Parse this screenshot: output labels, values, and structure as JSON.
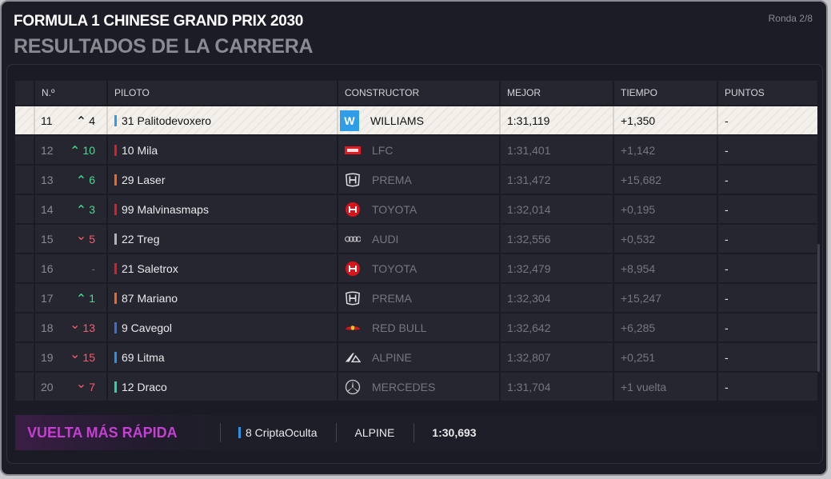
{
  "header": {
    "title": "FORMULA 1 CHINESE GRAND PRIX 2030",
    "subtitle": "RESULTADOS DE LA CARRERA",
    "round": "Ronda 2/8"
  },
  "columns": [
    "N.º",
    "PILOTO",
    "CONSTRUCTOR",
    "MEJOR",
    "TIEMPO",
    "PUNTOS"
  ],
  "rows": [
    {
      "pos": "11",
      "dir": "up",
      "change": "4",
      "driver": "31 Palitodevoxero",
      "team_color": "#2f9de8",
      "constructor": "WILLIAMS",
      "logo": "williams-logo-icon",
      "best": "1:31,119",
      "time": "+1,350",
      "points": "-",
      "highlight": true
    },
    {
      "pos": "12",
      "dir": "up",
      "change": "10",
      "driver": "10 Mila",
      "team_color": "#e01b24",
      "constructor": "LFC",
      "logo": "lfc-logo-icon",
      "best": "1:31,401",
      "time": "+1,142",
      "points": "-",
      "highlight": false
    },
    {
      "pos": "13",
      "dir": "up",
      "change": "6",
      "driver": "29 Laser",
      "team_color": "#f26522",
      "constructor": "PREMA",
      "logo": "honda-logo-icon",
      "best": "1:31,472",
      "time": "+15,682",
      "points": "-",
      "highlight": false
    },
    {
      "pos": "14",
      "dir": "up",
      "change": "3",
      "driver": "99 Malvinasmaps",
      "team_color": "#e01b24",
      "constructor": "TOYOTA",
      "logo": "haas-logo-icon",
      "best": "1:32,014",
      "time": "+0,195",
      "points": "-",
      "highlight": false
    },
    {
      "pos": "15",
      "dir": "down",
      "change": "5",
      "driver": "22 Treg",
      "team_color": "#b0b0b8",
      "constructor": "AUDI",
      "logo": "audi-logo-icon",
      "best": "1:32,556",
      "time": "+0,532",
      "points": "-",
      "highlight": false
    },
    {
      "pos": "16",
      "dir": "same",
      "change": "-",
      "driver": "21 Saletrox",
      "team_color": "#e01b24",
      "constructor": "TOYOTA",
      "logo": "haas-logo-icon",
      "best": "1:32,479",
      "time": "+8,954",
      "points": "-",
      "highlight": false
    },
    {
      "pos": "17",
      "dir": "up",
      "change": "1",
      "driver": "87 Mariano",
      "team_color": "#f26522",
      "constructor": "PREMA",
      "logo": "honda-logo-icon",
      "best": "1:32,304",
      "time": "+15,247",
      "points": "-",
      "highlight": false
    },
    {
      "pos": "18",
      "dir": "down",
      "change": "13",
      "driver": "9 Cavegol",
      "team_color": "#3b6fd1",
      "constructor": "RED BULL",
      "logo": "redbull-logo-icon",
      "best": "1:32,642",
      "time": "+6,285",
      "points": "-",
      "highlight": false
    },
    {
      "pos": "19",
      "dir": "down",
      "change": "15",
      "driver": "69 Litma",
      "team_color": "#2f8fe0",
      "constructor": "ALPINE",
      "logo": "alpine-logo-icon",
      "best": "1:32,807",
      "time": "+0,251",
      "points": "-",
      "highlight": false
    },
    {
      "pos": "20",
      "dir": "down",
      "change": "7",
      "driver": "12 Draco",
      "team_color": "#27d6b0",
      "constructor": "MERCEDES",
      "logo": "mercedes-logo-icon",
      "best": "1:31,704",
      "time": "+1 vuelta",
      "points": "-",
      "highlight": false
    }
  ],
  "fastest_lap": {
    "label": "VUELTA MÁS RÁPIDA",
    "driver": "8 CriptaOculta",
    "driver_color": "#2f8fe0",
    "constructor": "ALPINE",
    "time": "1:30,693"
  }
}
